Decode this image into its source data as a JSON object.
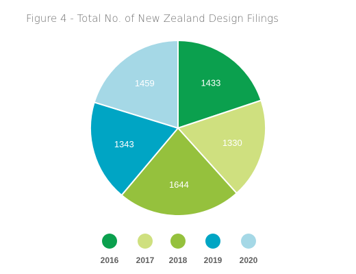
{
  "chart_data": {
    "type": "pie",
    "title": "Figure 4 - Total No. of New Zealand Design Filings",
    "categories": [
      "2016",
      "2017",
      "2018",
      "2019",
      "2020"
    ],
    "values": [
      1433,
      1330,
      1644,
      1343,
      1459
    ],
    "colors": [
      "#0ba04e",
      "#cfe07f",
      "#95c13d",
      "#00a5c4",
      "#a5d8e6"
    ],
    "start_angle_deg": 0,
    "direction": "clockwise",
    "legend_position": "bottom",
    "data_labels": true
  }
}
